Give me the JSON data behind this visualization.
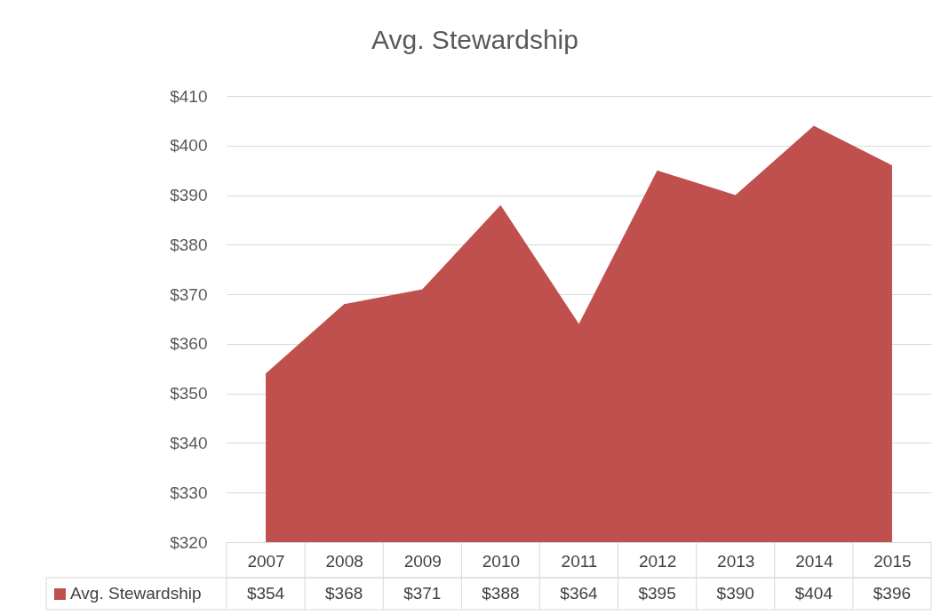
{
  "chart_data": {
    "type": "area",
    "title": "Avg. Stewardship",
    "categories": [
      "2007",
      "2008",
      "2009",
      "2010",
      "2011",
      "2012",
      "2013",
      "2014",
      "2015"
    ],
    "series": [
      {
        "name": "Avg. Stewardship",
        "color": "#c0504d",
        "values": [
          354,
          368,
          371,
          388,
          364,
          395,
          390,
          404,
          396
        ],
        "value_labels": [
          "$354",
          "$368",
          "$371",
          "$388",
          "$364",
          "$395",
          "$390",
          "$404",
          "$396"
        ]
      }
    ],
    "ylim": [
      320,
      410
    ],
    "yticks": [
      {
        "value": 320,
        "label": "$320"
      },
      {
        "value": 330,
        "label": "$330"
      },
      {
        "value": 340,
        "label": "$340"
      },
      {
        "value": 350,
        "label": "$350"
      },
      {
        "value": 360,
        "label": "$360"
      },
      {
        "value": 370,
        "label": "$370"
      },
      {
        "value": 380,
        "label": "$380"
      },
      {
        "value": 390,
        "label": "$390"
      },
      {
        "value": 400,
        "label": "$400"
      },
      {
        "value": 410,
        "label": "$410"
      }
    ],
    "grid": "y",
    "legend": "bottom"
  }
}
